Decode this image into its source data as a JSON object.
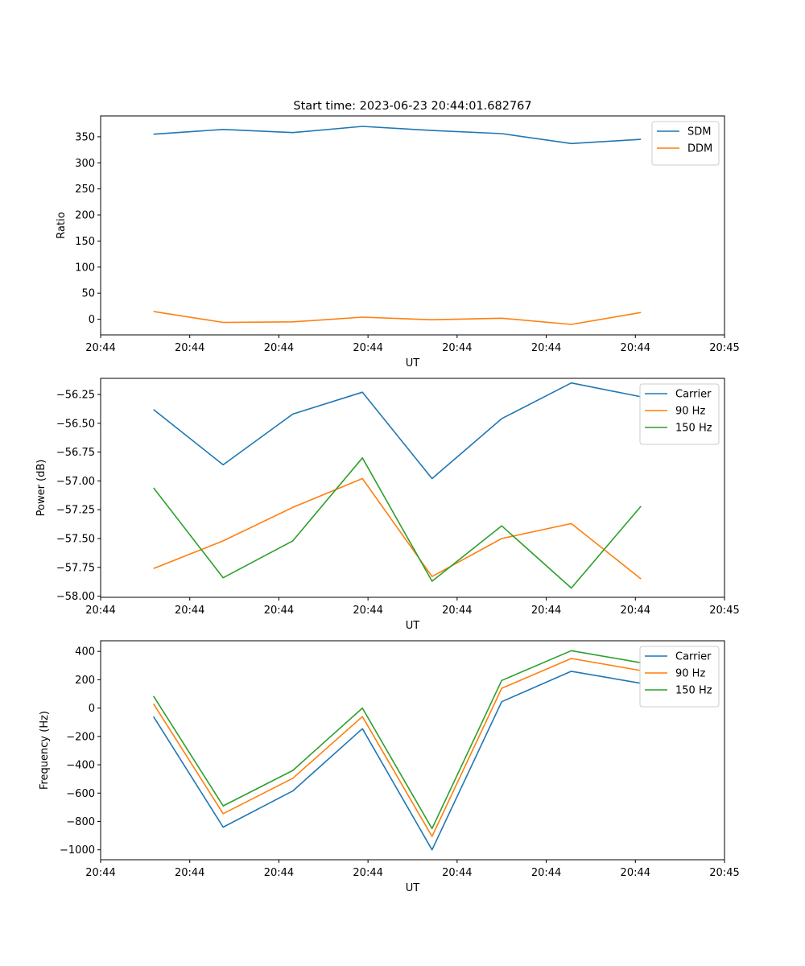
{
  "figure": {
    "title": "Start time: 2023-06-23 20:44:01.682767"
  },
  "x_axis": {
    "tick_labels": [
      "20:44",
      "20:44",
      "20:44",
      "20:44",
      "20:44",
      "20:44",
      "20:44",
      "20:45"
    ],
    "label": "UT"
  },
  "chart_data": [
    {
      "type": "line",
      "title": "Start time: 2023-06-23 20:44:01.682767",
      "xlabel": "UT",
      "ylabel": "Ratio",
      "x": [
        1,
        2,
        3,
        4,
        5,
        6,
        7,
        8
      ],
      "xlim": [
        0.24,
        9.2
      ],
      "ylim": [
        -30,
        390
      ],
      "yticks": [
        0,
        50,
        100,
        150,
        200,
        250,
        300,
        350
      ],
      "ytick_labels": [
        "0",
        "50",
        "100",
        "150",
        "200",
        "250",
        "300",
        "350"
      ],
      "legend": "top-right",
      "series": [
        {
          "name": "SDM",
          "color": "#1f77b4",
          "values": [
            355,
            364,
            358,
            370,
            362,
            356,
            337,
            345
          ]
        },
        {
          "name": "DDM",
          "color": "#ff7f0e",
          "values": [
            15,
            -6,
            -5,
            4,
            -1,
            2,
            -10,
            13
          ]
        }
      ]
    },
    {
      "type": "line",
      "xlabel": "UT",
      "ylabel": "Power (dB)",
      "x": [
        1,
        2,
        3,
        4,
        5,
        6,
        7,
        8
      ],
      "xlim": [
        0.24,
        9.2
      ],
      "ylim": [
        -58.01,
        -56.11
      ],
      "yticks": [
        -58.0,
        -57.75,
        -57.5,
        -57.25,
        -57.0,
        -56.75,
        -56.5,
        -56.25
      ],
      "ytick_labels": [
        "−58.00",
        "−57.75",
        "−57.50",
        "−57.25",
        "−57.00",
        "−56.75",
        "−56.50",
        "−56.25"
      ],
      "legend": "top-right",
      "series": [
        {
          "name": "Carrier",
          "color": "#1f77b4",
          "values": [
            -56.38,
            -56.86,
            -56.42,
            -56.23,
            -56.98,
            -56.46,
            -56.15,
            -56.27
          ]
        },
        {
          "name": "90 Hz",
          "color": "#ff7f0e",
          "values": [
            -57.76,
            -57.52,
            -57.23,
            -56.98,
            -57.83,
            -57.5,
            -57.37,
            -57.85
          ]
        },
        {
          "name": "150 Hz",
          "color": "#2ca02c",
          "values": [
            -57.06,
            -57.84,
            -57.52,
            -56.8,
            -57.87,
            -57.39,
            -57.93,
            -57.22
          ]
        }
      ]
    },
    {
      "type": "line",
      "xlabel": "UT",
      "ylabel": "Frequency (Hz)",
      "x": [
        1,
        2,
        3,
        4,
        5,
        6,
        7,
        8
      ],
      "xlim": [
        0.24,
        9.2
      ],
      "ylim": [
        -1070,
        475
      ],
      "yticks": [
        -1000,
        -800,
        -600,
        -400,
        -200,
        0,
        200,
        400
      ],
      "ytick_labels": [
        "−1000",
        "−800",
        "−600",
        "−400",
        "−200",
        "0",
        "200",
        "400"
      ],
      "legend": "top-right",
      "series": [
        {
          "name": "Carrier",
          "color": "#1f77b4",
          "values": [
            -60,
            -840,
            -585,
            -145,
            -1000,
            45,
            260,
            175
          ]
        },
        {
          "name": "90 Hz",
          "color": "#ff7f0e",
          "values": [
            30,
            -745,
            -495,
            -60,
            -905,
            140,
            350,
            265
          ]
        },
        {
          "name": "150 Hz",
          "color": "#2ca02c",
          "values": [
            85,
            -690,
            -440,
            0,
            -850,
            195,
            405,
            320
          ]
        }
      ]
    }
  ]
}
